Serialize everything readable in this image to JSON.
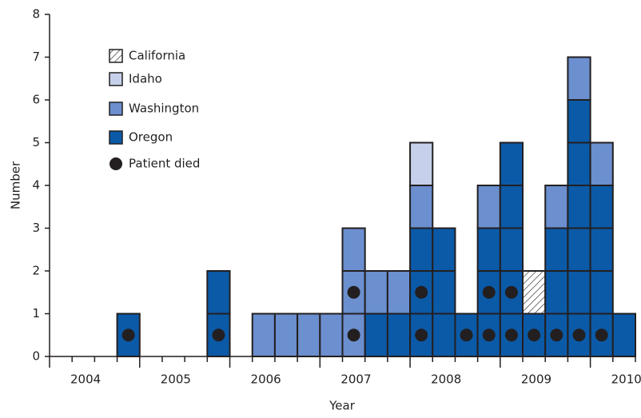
{
  "chart_data": {
    "type": "stacked_histogram",
    "xlabel": "Year",
    "ylabel": "Number",
    "x": [
      2004.75,
      2005,
      2005.25,
      2005.5,
      2005.75,
      2006,
      2006.25,
      2006.5,
      2006.75,
      2007,
      2007.25,
      2007.5,
      2007.75,
      2008,
      2008.25,
      2008.5,
      2008.75,
      2009,
      2009.25,
      2009.5,
      2009.75,
      2010,
      2010.25
    ],
    "series": [
      {
        "name": "Oregon",
        "color": "#0b5aa8",
        "values": [
          1,
          0,
          0,
          0,
          2,
          0,
          0,
          0,
          0,
          0,
          0,
          1,
          1,
          3,
          3,
          1,
          3,
          5,
          1,
          3,
          6,
          4,
          1
        ]
      },
      {
        "name": "Washington",
        "color": "#6b8fcf",
        "values": [
          0,
          0,
          0,
          0,
          0,
          0,
          1,
          1,
          1,
          1,
          3,
          1,
          1,
          1,
          0,
          0,
          1,
          0,
          0,
          1,
          1,
          1,
          0
        ]
      },
      {
        "name": "Idaho",
        "color": "#c6d0ea",
        "values": [
          0,
          0,
          0,
          0,
          0,
          0,
          0,
          0,
          0,
          0,
          0,
          0,
          0,
          1,
          0,
          0,
          0,
          0,
          0,
          0,
          0,
          0,
          0
        ]
      },
      {
        "name": "California",
        "color": "#231f20",
        "hatch": true,
        "values": [
          0,
          0,
          0,
          0,
          0,
          0,
          0,
          0,
          0,
          0,
          0,
          0,
          0,
          0,
          0,
          0,
          0,
          0,
          1,
          0,
          0,
          0,
          0
        ]
      }
    ],
    "deaths": {
      "name": "Patient died",
      "color": "#231f20",
      "values": [
        1,
        0,
        0,
        0,
        1,
        0,
        0,
        0,
        0,
        0,
        2,
        0,
        0,
        2,
        0,
        1,
        2,
        2,
        1,
        1,
        1,
        1,
        0
      ]
    },
    "xlim": [
      2004,
      2010.5
    ],
    "xticks": [
      {
        "value": 2004.4,
        "label": "2004"
      },
      {
        "value": 2005.4,
        "label": "2005"
      },
      {
        "value": 2006.4,
        "label": "2006"
      },
      {
        "value": 2007.4,
        "label": "2007"
      },
      {
        "value": 2008.4,
        "label": "2008"
      },
      {
        "value": 2009.4,
        "label": "2009"
      },
      {
        "value": 2010.4,
        "label": "2010"
      }
    ],
    "ylim": [
      0,
      8
    ],
    "yticks": [
      0,
      1,
      2,
      3,
      4,
      5,
      6,
      7,
      8
    ]
  }
}
